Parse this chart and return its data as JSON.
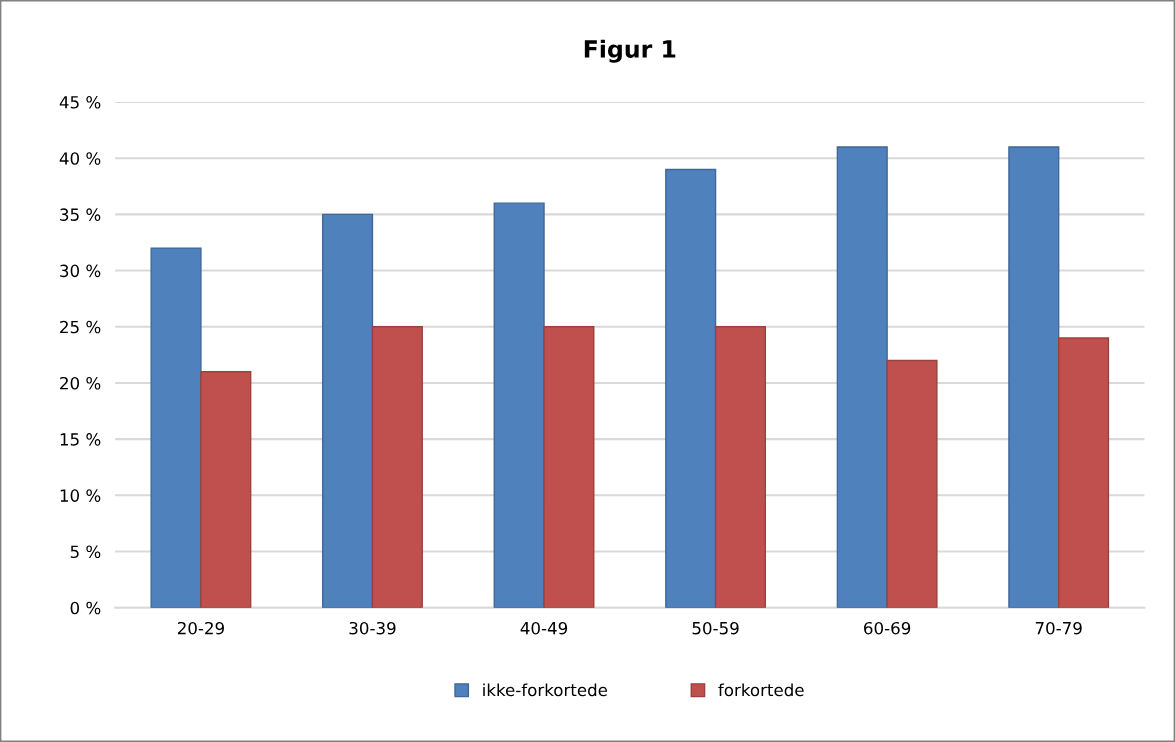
{
  "chart_data": {
    "type": "bar",
    "title": "Figur 1",
    "categories": [
      "20-29",
      "30-39",
      "40-49",
      "50-59",
      "60-69",
      "70-79"
    ],
    "series": [
      {
        "name": "ikke-forkortede",
        "color": "#4f81bd",
        "values": [
          32,
          35,
          36,
          39,
          41,
          41
        ]
      },
      {
        "name": "forkortede",
        "color": "#c0504d",
        "values": [
          21,
          25,
          25,
          25,
          22,
          24
        ]
      }
    ],
    "ylim": [
      0,
      45
    ],
    "yticks": [
      {
        "value": 0,
        "label": "0 %"
      },
      {
        "value": 5,
        "label": "5 %"
      },
      {
        "value": 10,
        "label": "10 %"
      },
      {
        "value": 15,
        "label": "15 %"
      },
      {
        "value": 20,
        "label": "20 %"
      },
      {
        "value": 25,
        "label": "25 %"
      },
      {
        "value": 30,
        "label": "30 %"
      },
      {
        "value": 35,
        "label": "35 %"
      },
      {
        "value": 40,
        "label": "40 %"
      },
      {
        "value": 45,
        "label": "45 %"
      }
    ],
    "grid": "y",
    "legend": "bottom"
  }
}
